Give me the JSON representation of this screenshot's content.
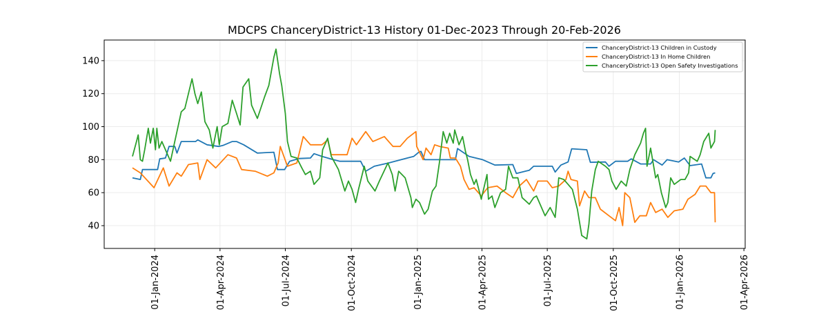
{
  "chart_data": {
    "type": "line",
    "title": "MDCPS ChanceryDistrict-13 History 01-Dec-2023 Through 20-Feb-2026",
    "xlabel": "",
    "ylabel": "",
    "x_unit": "days since 01-Dec-2023",
    "xlim_days": [
      -39.4,
      853.8
    ],
    "ylim": [
      26.2,
      152.5
    ],
    "grid": true,
    "legend_position": "top-right",
    "yticks": [
      40,
      60,
      80,
      100,
      120,
      140
    ],
    "xticks": [
      {
        "day": 31,
        "label": "01-Jan-2024"
      },
      {
        "day": 122,
        "label": "01-Apr-2024"
      },
      {
        "day": 213,
        "label": "01-Jul-2024"
      },
      {
        "day": 305,
        "label": "01-Oct-2024"
      },
      {
        "day": 397,
        "label": "01-Jan-2025"
      },
      {
        "day": 487,
        "label": "01-Apr-2025"
      },
      {
        "day": 578,
        "label": "01-Jul-2025"
      },
      {
        "day": 670,
        "label": "01-Oct-2025"
      },
      {
        "day": 762,
        "label": "01-Jan-2026"
      },
      {
        "day": 852,
        "label": "01-Apr-2026"
      }
    ],
    "series": [
      {
        "name": "ChanceryDistrict-13 Children in Custody",
        "color": "#1f77b4",
        "points": [
          [
            0,
            69
          ],
          [
            11,
            68
          ],
          [
            14,
            74
          ],
          [
            35,
            74
          ],
          [
            38,
            80.5
          ],
          [
            46,
            81
          ],
          [
            51,
            88
          ],
          [
            59,
            88
          ],
          [
            62,
            84
          ],
          [
            68,
            91
          ],
          [
            88,
            91
          ],
          [
            91,
            92
          ],
          [
            104,
            89
          ],
          [
            120,
            88
          ],
          [
            126,
            88.6
          ],
          [
            139,
            91
          ],
          [
            145,
            91
          ],
          [
            155,
            89
          ],
          [
            174,
            84
          ],
          [
            197,
            84.5
          ],
          [
            202,
            74
          ],
          [
            212,
            74
          ],
          [
            219,
            79
          ],
          [
            232,
            80.7
          ],
          [
            248,
            81
          ],
          [
            253,
            83.6
          ],
          [
            264,
            82
          ],
          [
            280,
            80
          ],
          [
            289,
            79
          ],
          [
            318,
            79
          ],
          [
            325,
            73
          ],
          [
            337,
            76
          ],
          [
            357,
            78
          ],
          [
            383,
            81
          ],
          [
            392,
            82
          ],
          [
            399,
            84.5
          ],
          [
            402,
            85
          ],
          [
            407,
            80
          ],
          [
            450,
            80
          ],
          [
            453,
            86.7
          ],
          [
            469,
            82
          ],
          [
            488,
            80
          ],
          [
            505,
            76.7
          ],
          [
            530,
            77
          ],
          [
            535,
            71.6
          ],
          [
            553,
            73.6
          ],
          [
            559,
            76
          ],
          [
            585,
            76
          ],
          [
            589,
            72.5
          ],
          [
            597,
            76.7
          ],
          [
            607,
            78.6
          ],
          [
            612,
            86.6
          ],
          [
            633,
            86
          ],
          [
            638,
            78.4
          ],
          [
            659,
            78.6
          ],
          [
            664,
            76
          ],
          [
            673,
            79
          ],
          [
            690,
            79
          ],
          [
            695,
            80.5
          ],
          [
            708,
            77.4
          ],
          [
            722,
            77.4
          ],
          [
            726,
            80
          ],
          [
            738,
            76.7
          ],
          [
            745,
            80
          ],
          [
            761,
            78.6
          ],
          [
            769,
            81
          ],
          [
            777,
            76.4
          ],
          [
            793,
            77.4
          ],
          [
            799,
            69
          ],
          [
            806,
            69
          ],
          [
            809,
            71.6
          ],
          [
            812,
            72
          ]
        ]
      },
      {
        "name": "ChanceryDistrict-13 In Home Children",
        "color": "#ff7f0e",
        "points": [
          [
            0,
            75
          ],
          [
            11,
            72
          ],
          [
            30,
            63
          ],
          [
            43,
            75
          ],
          [
            51,
            64
          ],
          [
            62,
            72
          ],
          [
            68,
            70
          ],
          [
            78,
            77
          ],
          [
            91,
            78
          ],
          [
            94,
            68
          ],
          [
            104,
            80
          ],
          [
            116,
            75
          ],
          [
            133,
            83
          ],
          [
            145,
            81
          ],
          [
            152,
            74
          ],
          [
            171,
            73
          ],
          [
            188,
            70
          ],
          [
            197,
            72
          ],
          [
            203,
            78
          ],
          [
            206,
            88
          ],
          [
            216,
            76
          ],
          [
            229,
            78
          ],
          [
            238,
            94
          ],
          [
            248,
            89
          ],
          [
            264,
            89
          ],
          [
            272,
            92
          ],
          [
            277,
            83
          ],
          [
            284,
            83
          ],
          [
            299,
            83
          ],
          [
            306,
            93
          ],
          [
            312,
            89
          ],
          [
            325,
            97
          ],
          [
            335,
            91
          ],
          [
            351,
            94
          ],
          [
            363,
            88
          ],
          [
            373,
            88
          ],
          [
            383,
            93
          ],
          [
            395,
            97
          ],
          [
            396,
            88
          ],
          [
            405,
            80
          ],
          [
            409,
            87
          ],
          [
            416,
            83
          ],
          [
            421,
            89
          ],
          [
            428,
            88
          ],
          [
            440,
            87
          ],
          [
            443,
            81
          ],
          [
            450,
            81
          ],
          [
            457,
            76
          ],
          [
            462,
            68
          ],
          [
            469,
            62
          ],
          [
            476,
            63
          ],
          [
            486,
            58
          ],
          [
            495,
            63
          ],
          [
            508,
            64
          ],
          [
            520,
            60
          ],
          [
            530,
            57
          ],
          [
            539,
            64
          ],
          [
            549,
            68
          ],
          [
            559,
            61
          ],
          [
            565,
            67
          ],
          [
            578,
            67
          ],
          [
            585,
            63
          ],
          [
            594,
            64
          ],
          [
            604,
            68
          ],
          [
            607,
            73
          ],
          [
            611,
            68
          ],
          [
            620,
            67
          ],
          [
            623,
            52
          ],
          [
            630,
            61
          ],
          [
            636,
            57
          ],
          [
            645,
            57
          ],
          [
            652,
            50
          ],
          [
            664,
            46
          ],
          [
            673,
            43
          ],
          [
            678,
            51
          ],
          [
            683,
            40
          ],
          [
            686,
            60
          ],
          [
            693,
            57
          ],
          [
            700,
            42
          ],
          [
            707,
            46
          ],
          [
            716,
            46
          ],
          [
            722,
            54
          ],
          [
            729,
            48
          ],
          [
            738,
            50
          ],
          [
            746,
            45
          ],
          [
            755,
            49
          ],
          [
            767,
            50
          ],
          [
            774,
            56
          ],
          [
            784,
            59
          ],
          [
            791,
            64
          ],
          [
            799,
            64
          ],
          [
            806,
            60
          ],
          [
            811,
            60
          ],
          [
            812,
            42
          ]
        ]
      },
      {
        "name": "ChanceryDistrict-13 Open Safety Investigations",
        "color": "#2ca02c",
        "points": [
          [
            0,
            82
          ],
          [
            5,
            90
          ],
          [
            8,
            95
          ],
          [
            11,
            80
          ],
          [
            14,
            79
          ],
          [
            17,
            86
          ],
          [
            22,
            99
          ],
          [
            25,
            90
          ],
          [
            29,
            99
          ],
          [
            32,
            86
          ],
          [
            34,
            99
          ],
          [
            37,
            87
          ],
          [
            41,
            91
          ],
          [
            46,
            86
          ],
          [
            53,
            79
          ],
          [
            59,
            91
          ],
          [
            63,
            99
          ],
          [
            68,
            109
          ],
          [
            73,
            111
          ],
          [
            78,
            120
          ],
          [
            83,
            129
          ],
          [
            87,
            120
          ],
          [
            91,
            114
          ],
          [
            96,
            121
          ],
          [
            101,
            103
          ],
          [
            107,
            98
          ],
          [
            112,
            87
          ],
          [
            118,
            100
          ],
          [
            121,
            89
          ],
          [
            125,
            100
          ],
          [
            133,
            102
          ],
          [
            139,
            116
          ],
          [
            145,
            108
          ],
          [
            150,
            101
          ],
          [
            154,
            124
          ],
          [
            162,
            129
          ],
          [
            166,
            113
          ],
          [
            174,
            105
          ],
          [
            184,
            118
          ],
          [
            190,
            125
          ],
          [
            197,
            142
          ],
          [
            200,
            147
          ],
          [
            205,
            132
          ],
          [
            208,
            125
          ],
          [
            213,
            108
          ],
          [
            216,
            91
          ],
          [
            221,
            82
          ],
          [
            229,
            81
          ],
          [
            236,
            75
          ],
          [
            241,
            71
          ],
          [
            248,
            73
          ],
          [
            253,
            65
          ],
          [
            261,
            69
          ],
          [
            265,
            86
          ],
          [
            272,
            93
          ],
          [
            277,
            82
          ],
          [
            287,
            74
          ],
          [
            296,
            61
          ],
          [
            301,
            67
          ],
          [
            306,
            62
          ],
          [
            311,
            54
          ],
          [
            315,
            62
          ],
          [
            323,
            76
          ],
          [
            328,
            67
          ],
          [
            338,
            61
          ],
          [
            344,
            67
          ],
          [
            356,
            78
          ],
          [
            362,
            71
          ],
          [
            366,
            61
          ],
          [
            371,
            73
          ],
          [
            380,
            69
          ],
          [
            388,
            57
          ],
          [
            390,
            51
          ],
          [
            395,
            56
          ],
          [
            400,
            54
          ],
          [
            407,
            47
          ],
          [
            412,
            50
          ],
          [
            418,
            61
          ],
          [
            423,
            64
          ],
          [
            428,
            79
          ],
          [
            433,
            97
          ],
          [
            438,
            90
          ],
          [
            442,
            96
          ],
          [
            447,
            90
          ],
          [
            449,
            98
          ],
          [
            455,
            89
          ],
          [
            460,
            94
          ],
          [
            464,
            85
          ],
          [
            467,
            80
          ],
          [
            471,
            71
          ],
          [
            476,
            65
          ],
          [
            479,
            68
          ],
          [
            486,
            56
          ],
          [
            494,
            71
          ],
          [
            496,
            56
          ],
          [
            501,
            58
          ],
          [
            505,
            51
          ],
          [
            513,
            60
          ],
          [
            520,
            62
          ],
          [
            524,
            76
          ],
          [
            530,
            69
          ],
          [
            537,
            69
          ],
          [
            543,
            57
          ],
          [
            553,
            53
          ],
          [
            559,
            57
          ],
          [
            563,
            58
          ],
          [
            568,
            53
          ],
          [
            575,
            46
          ],
          [
            582,
            51
          ],
          [
            589,
            45
          ],
          [
            594,
            69
          ],
          [
            601,
            68
          ],
          [
            607,
            65
          ],
          [
            613,
            62
          ],
          [
            620,
            50
          ],
          [
            626,
            34
          ],
          [
            633,
            32
          ],
          [
            636,
            41
          ],
          [
            640,
            61
          ],
          [
            645,
            74
          ],
          [
            649,
            79
          ],
          [
            659,
            76
          ],
          [
            664,
            74
          ],
          [
            668,
            67
          ],
          [
            674,
            62
          ],
          [
            681,
            67
          ],
          [
            688,
            64
          ],
          [
            693,
            74
          ],
          [
            700,
            83
          ],
          [
            708,
            90
          ],
          [
            712,
            96
          ],
          [
            715,
            99
          ],
          [
            717,
            76
          ],
          [
            722,
            87
          ],
          [
            729,
            69
          ],
          [
            732,
            71
          ],
          [
            737,
            60
          ],
          [
            743,
            51
          ],
          [
            746,
            54
          ],
          [
            750,
            69
          ],
          [
            755,
            65
          ],
          [
            764,
            68
          ],
          [
            770,
            68
          ],
          [
            775,
            72
          ],
          [
            777,
            82
          ],
          [
            787,
            79
          ],
          [
            791,
            83
          ],
          [
            796,
            91
          ],
          [
            803,
            96
          ],
          [
            806,
            87
          ],
          [
            811,
            91
          ],
          [
            812,
            98
          ]
        ]
      }
    ]
  }
}
